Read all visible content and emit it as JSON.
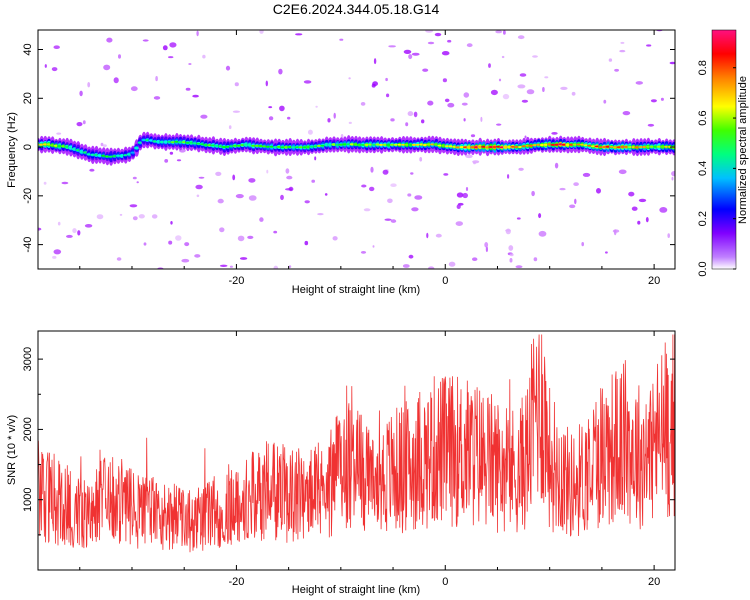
{
  "title": "C2E6.2024.344.05.18.G14",
  "colors": {
    "snr_line": "#f03232",
    "ridge_core": "#f02a2a",
    "frame": "#000000"
  },
  "chart_data": [
    {
      "type": "heatmap",
      "xlabel": "Height of straight line (km)",
      "ylabel": "Frequency (Hz)",
      "xlim": [
        -39,
        22
      ],
      "ylim": [
        -50,
        48
      ],
      "xticks": [
        "-20",
        "0",
        "20"
      ],
      "yticks": [
        "40",
        "20",
        "0",
        "-20",
        "-40"
      ],
      "colorbar": {
        "label": "Normalized spectral amplitude",
        "range": [
          0,
          0.95
        ],
        "ticks": [
          "0.0",
          "0.2",
          "0.4",
          "0.6",
          "0.8"
        ],
        "colormap": [
          "#ffffff",
          "#a000ff",
          "#0000ff",
          "#00ffff",
          "#00ff00",
          "#ffff00",
          "#ff8000",
          "#ff0000",
          "#ff0080"
        ]
      },
      "ridge": [
        {
          "x": -38,
          "f": 1,
          "a": 0.6
        },
        {
          "x": -36,
          "f": 0,
          "a": 0.45
        },
        {
          "x": -34,
          "f": -3,
          "a": 0.35
        },
        {
          "x": -32,
          "f": -4,
          "a": 0.4
        },
        {
          "x": -30,
          "f": -3,
          "a": 0.3
        },
        {
          "x": -29,
          "f": 3,
          "a": 0.35
        },
        {
          "x": -27,
          "f": 2,
          "a": 0.4
        },
        {
          "x": -25,
          "f": 2,
          "a": 0.45
        },
        {
          "x": -23,
          "f": 1,
          "a": 0.45
        },
        {
          "x": -21,
          "f": 0,
          "a": 0.4
        },
        {
          "x": -19,
          "f": 1,
          "a": 0.45
        },
        {
          "x": -17,
          "f": 0,
          "a": 0.45
        },
        {
          "x": -15,
          "f": 0,
          "a": 0.45
        },
        {
          "x": -13,
          "f": 0,
          "a": 0.45
        },
        {
          "x": -11,
          "f": 1,
          "a": 0.45
        },
        {
          "x": -9,
          "f": 1,
          "a": 0.5
        },
        {
          "x": -7,
          "f": 1,
          "a": 0.5
        },
        {
          "x": -5,
          "f": 1,
          "a": 0.55
        },
        {
          "x": -3,
          "f": 1,
          "a": 0.55
        },
        {
          "x": -1,
          "f": 1,
          "a": 0.6
        },
        {
          "x": 1,
          "f": 0,
          "a": 0.6
        },
        {
          "x": 3,
          "f": 0,
          "a": 0.85
        },
        {
          "x": 5,
          "f": 0,
          "a": 0.9
        },
        {
          "x": 7,
          "f": 0,
          "a": 0.7
        },
        {
          "x": 9,
          "f": 1,
          "a": 0.6
        },
        {
          "x": 11,
          "f": 1,
          "a": 0.85
        },
        {
          "x": 13,
          "f": 1,
          "a": 0.6
        },
        {
          "x": 15,
          "f": 0,
          "a": 0.8
        },
        {
          "x": 17,
          "f": 0,
          "a": 0.75
        },
        {
          "x": 19,
          "f": 0,
          "a": 0.6
        },
        {
          "x": 21,
          "f": 0,
          "a": 0.6
        }
      ]
    },
    {
      "type": "line",
      "xlabel": "Height of straight line (km)",
      "ylabel": "SNR (10 * v/v)",
      "xlim": [
        -39,
        22
      ],
      "ylim": [
        0,
        3400
      ],
      "xticks": [
        "-20",
        "0",
        "20"
      ],
      "yticks": [
        "3000",
        "2000",
        "1000"
      ],
      "series": [
        {
          "x": [
            -39,
            -37,
            -35,
            -33,
            -31,
            -29,
            -27,
            -25,
            -23,
            -21,
            -19,
            -17,
            -15,
            -13,
            -11,
            -10,
            -9,
            -8,
            -7,
            -5,
            -3,
            -1,
            1,
            3,
            5,
            7,
            8,
            9,
            10,
            11,
            12,
            13,
            15,
            17,
            19,
            21,
            22
          ],
          "values": [
            1200,
            950,
            850,
            1000,
            900,
            850,
            800,
            700,
            750,
            900,
            1000,
            1100,
            1100,
            1050,
            1200,
            1500,
            1700,
            1400,
            1200,
            1400,
            1500,
            1700,
            1700,
            1650,
            1500,
            1400,
            1700,
            2700,
            1600,
            1400,
            1200,
            1300,
            1700,
            1800,
            1600,
            2000,
            2100
          ]
        }
      ]
    }
  ]
}
